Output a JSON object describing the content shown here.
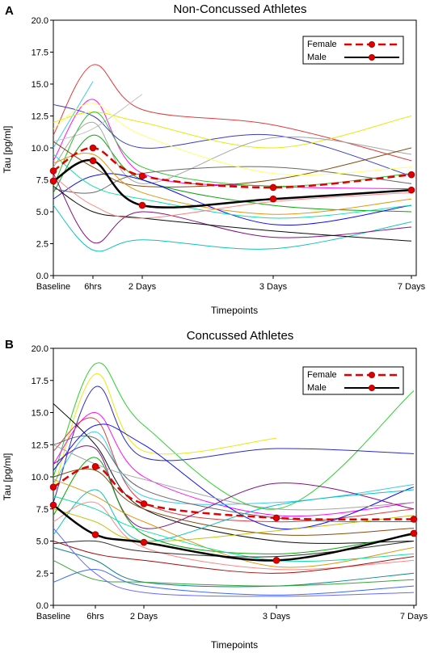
{
  "chart_data": [
    {
      "type": "line",
      "panel": "A",
      "title": "Non-Concussed Athletes",
      "xlabel": "Timepoints",
      "ylabel": "Tau [pg/ml]",
      "ylim": [
        0,
        20
      ],
      "yticks": [
        "0.0",
        "2.5",
        "5.0",
        "7.5",
        "10.0",
        "12.5",
        "15.0",
        "17.5",
        "20.0"
      ],
      "categories": [
        "Baseline",
        "6hrs",
        "2 Days",
        "3 Days",
        "7 Days"
      ],
      "legend": {
        "placement": "top-right",
        "entries": [
          "Female",
          "Male"
        ]
      },
      "series": [
        {
          "name": "Female",
          "color": "#e00000",
          "dash": true,
          "values": [
            8.2,
            10.0,
            7.8,
            6.9,
            7.9
          ]
        },
        {
          "name": "Male",
          "color": "#000000",
          "dash": false,
          "values": [
            7.4,
            9.0,
            5.5,
            6.0,
            6.7
          ]
        }
      ],
      "individuals": [
        {
          "color": "#e03030",
          "values": [
            11.0,
            16.5,
            13.0,
            11.8,
            9.0
          ]
        },
        {
          "color": "#ff00ff",
          "values": [
            9.0,
            13.8,
            8.0,
            7.0,
            6.8
          ]
        },
        {
          "color": "#30c8e8",
          "values": [
            10.0,
            15.2,
            null,
            null,
            null
          ]
        },
        {
          "color": "#3030c0",
          "values": [
            13.4,
            12.5,
            10.0,
            11.0,
            7.8
          ]
        },
        {
          "color": "#e8e800",
          "values": [
            12.0,
            12.8,
            12.0,
            10.0,
            12.5
          ]
        },
        {
          "color": "#c0c0c0",
          "values": [
            10.5,
            11.5,
            14.2,
            null,
            null
          ]
        },
        {
          "color": "#20c020",
          "values": [
            7.0,
            12.8,
            8.5,
            7.0,
            8.0
          ]
        },
        {
          "color": "#00a000",
          "values": [
            6.5,
            11.0,
            7.5,
            5.5,
            5.0
          ]
        },
        {
          "color": "#a0a0a0",
          "values": [
            8.5,
            12.0,
            7.2,
            10.8,
            9.5
          ]
        },
        {
          "color": "#804000",
          "values": [
            10.5,
            8.5,
            7.0,
            7.5,
            10.0
          ]
        },
        {
          "color": "#0000ff",
          "values": [
            6.0,
            7.8,
            7.5,
            4.0,
            5.5
          ]
        },
        {
          "color": "#00c0c0",
          "values": [
            5.5,
            2.0,
            2.8,
            2.1,
            4.2
          ]
        },
        {
          "color": "#800080",
          "values": [
            8.0,
            2.6,
            5.0,
            3.0,
            3.8
          ]
        },
        {
          "color": "#000000",
          "values": [
            7.0,
            5.0,
            4.5,
            3.5,
            2.7
          ]
        },
        {
          "color": "#606060",
          "values": [
            6.8,
            6.5,
            8.0,
            8.5,
            7.2
          ]
        },
        {
          "color": "#00e0a0",
          "values": [
            9.5,
            7.0,
            6.0,
            4.5,
            5.5
          ]
        },
        {
          "color": "#e09000",
          "values": [
            8.8,
            9.5,
            6.5,
            4.8,
            6.0
          ]
        },
        {
          "color": "#ff8080",
          "values": [
            7.8,
            5.5,
            4.5,
            5.8,
            6.5
          ]
        },
        {
          "color": "#ffff60",
          "values": [
            11.5,
            13.5,
            11.0,
            8.0,
            8.5
          ]
        }
      ]
    },
    {
      "type": "line",
      "panel": "B",
      "title": "Concussed Athletes",
      "xlabel": "Timepoints",
      "ylabel": "Tau [pg/ml]",
      "ylim": [
        0,
        20
      ],
      "yticks": [
        "0.0",
        "2.5",
        "5.0",
        "7.5",
        "10.0",
        "12.5",
        "15.0",
        "17.5",
        "20.0"
      ],
      "categories": [
        "Baseline",
        "6hrs",
        "2 Days",
        "3 Days",
        "7 Days"
      ],
      "legend": {
        "placement": "top-right",
        "entries": [
          "Female",
          "Male"
        ]
      },
      "series": [
        {
          "name": "Female",
          "color": "#e00000",
          "dash": true,
          "values": [
            9.2,
            10.8,
            7.9,
            6.8,
            6.7
          ]
        },
        {
          "name": "Male",
          "color": "#000000",
          "dash": false,
          "values": [
            7.8,
            5.5,
            4.9,
            3.5,
            5.6
          ]
        }
      ],
      "individuals": [
        {
          "color": "#20d020",
          "values": [
            10.0,
            18.8,
            14.0,
            7.5,
            16.7
          ]
        },
        {
          "color": "#e8e800",
          "values": [
            9.0,
            18.0,
            12.0,
            13.0,
            null
          ]
        },
        {
          "color": "#2020c0",
          "values": [
            8.0,
            17.0,
            11.5,
            12.2,
            11.8
          ]
        },
        {
          "color": "#ff00ff",
          "values": [
            11.0,
            15.0,
            10.0,
            7.0,
            8.0
          ]
        },
        {
          "color": "#e03030",
          "values": [
            12.0,
            14.5,
            8.0,
            6.5,
            7.5
          ]
        },
        {
          "color": "#0000ff",
          "values": [
            10.5,
            14.0,
            12.5,
            6.0,
            9.2
          ]
        },
        {
          "color": "#30c8e8",
          "values": [
            9.5,
            13.5,
            8.5,
            8.0,
            9.4
          ]
        },
        {
          "color": "#000000",
          "values": [
            15.7,
            12.5,
            7.5,
            5.0,
            5.0
          ]
        },
        {
          "color": "#606060",
          "values": [
            12.5,
            13.0,
            9.0,
            6.8,
            6.5
          ]
        },
        {
          "color": "#800080",
          "values": [
            11.0,
            12.2,
            6.0,
            9.5,
            7.5
          ]
        },
        {
          "color": "#00a000",
          "values": [
            7.0,
            11.5,
            5.5,
            4.0,
            5.5
          ]
        },
        {
          "color": "#804000",
          "values": [
            10.0,
            10.5,
            7.5,
            5.5,
            6.0
          ]
        },
        {
          "color": "#a0a0a0",
          "values": [
            12.5,
            11.0,
            9.8,
            7.5,
            8.0
          ]
        },
        {
          "color": "#00c0c0",
          "values": [
            5.5,
            9.0,
            5.0,
            7.8,
            9.0
          ]
        },
        {
          "color": "#e09000",
          "values": [
            9.8,
            8.5,
            6.5,
            3.0,
            4.5
          ]
        },
        {
          "color": "#ff8080",
          "values": [
            6.5,
            8.0,
            4.5,
            2.8,
            3.5
          ]
        },
        {
          "color": "#00e0a0",
          "values": [
            8.5,
            7.5,
            5.8,
            3.5,
            4.0
          ]
        },
        {
          "color": "#3060ff",
          "values": [
            1.8,
            2.8,
            1.5,
            0.8,
            1.5
          ]
        },
        {
          "color": "#008080",
          "values": [
            4.5,
            3.5,
            1.8,
            1.5,
            2.5
          ]
        },
        {
          "color": "#a00000",
          "values": [
            5.0,
            4.0,
            3.5,
            2.5,
            3.8
          ]
        },
        {
          "color": "#6060ff",
          "values": [
            6.0,
            2.5,
            1.0,
            0.7,
            1.0
          ]
        },
        {
          "color": "#c0c000",
          "values": [
            7.5,
            6.5,
            5.0,
            5.8,
            7.0
          ]
        },
        {
          "color": "#30a030",
          "values": [
            3.5,
            2.0,
            1.8,
            1.5,
            2.0
          ]
        },
        {
          "color": "#202020",
          "values": [
            4.8,
            5.0,
            4.2,
            3.8,
            5.0
          ]
        }
      ]
    }
  ]
}
